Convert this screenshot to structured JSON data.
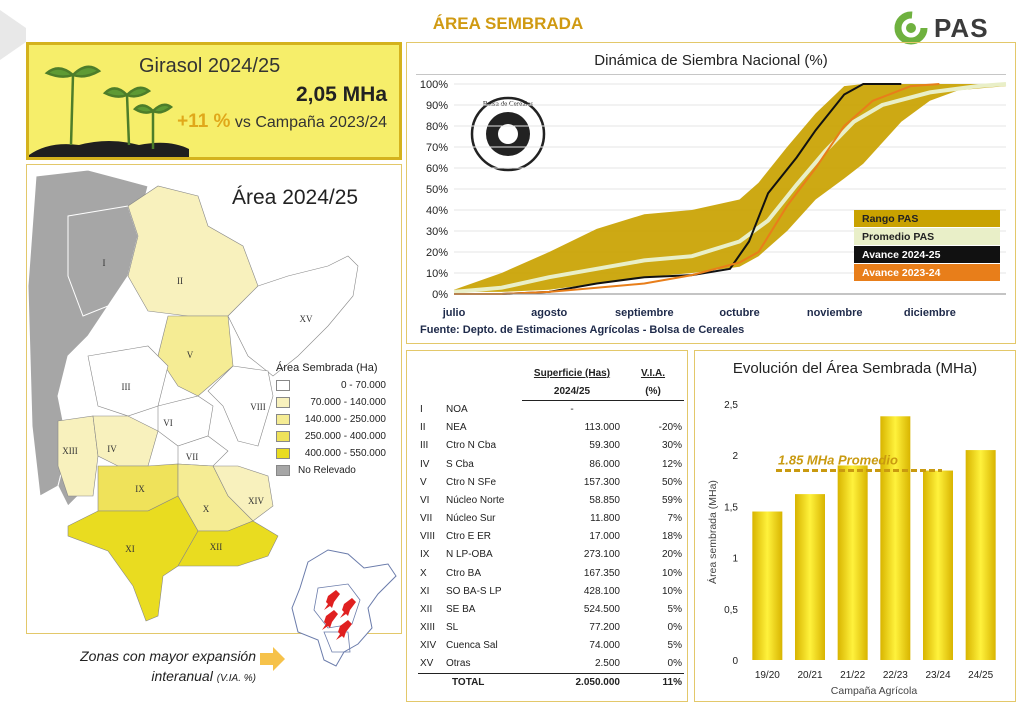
{
  "page": {
    "title": "ÁREA SEMBRADA",
    "logo": "PAS"
  },
  "crop_box": {
    "title": "Girasol 2024/25",
    "value": "2,05 MHa",
    "variation": "+11 %",
    "variation_text": "vs Campaña 2023/24"
  },
  "map": {
    "title": "Área 2024/25",
    "legend_title": "Área Sembrada (Ha)",
    "legend": [
      {
        "label": "0 - 70.000",
        "color": "#ffffff"
      },
      {
        "label": "70.000 - 140.000",
        "color": "#f8f1bd"
      },
      {
        "label": "140.000 - 250.000",
        "color": "#f5ec94"
      },
      {
        "label": "250.000 - 400.000",
        "color": "#efe25a"
      },
      {
        "label": "400.000 - 550.000",
        "color": "#e9dc20"
      },
      {
        "label": "No Relevado",
        "color": "#a6a6a6"
      }
    ],
    "zone_labels": [
      "I",
      "II",
      "III",
      "IV",
      "V",
      "VI",
      "VII",
      "VIII",
      "IX",
      "X",
      "XI",
      "XII",
      "XIII",
      "XIV",
      "XV"
    ],
    "expansion_text": "Zonas con mayor expansión",
    "expansion_text2": "interanual",
    "expansion_unit": "(V.IA. %)"
  },
  "dynamics": {
    "title": "Dinámica de Siembra Nacional (%)",
    "source": "Fuente: Depto. de Estimaciones Agrícolas - Bolsa de Cereales",
    "seal_text": "Bolsa de Cereales"
  },
  "chart_data": [
    {
      "type": "area",
      "title": "Dinámica de Siembra Nacional (%)",
      "xlabel": "",
      "ylabel": "",
      "x_ticks": [
        "julio",
        "agosto",
        "septiembre",
        "octubre",
        "noviembre",
        "diciembre"
      ],
      "y_ticks": [
        "0%",
        "10%",
        "20%",
        "30%",
        "40%",
        "50%",
        "60%",
        "70%",
        "80%",
        "90%",
        "100%"
      ],
      "ylim": [
        0,
        100
      ],
      "x_range": [
        0,
        5.8
      ],
      "legend_position": "right",
      "series": [
        {
          "name": "Rango PAS",
          "kind": "band",
          "color": "#c9a200",
          "points": [
            [
              0,
              1,
              2
            ],
            [
              0.5,
              1,
              10
            ],
            [
              1,
              2,
              20
            ],
            [
              1.5,
              5,
              31
            ],
            [
              2,
              8,
              38
            ],
            [
              2.5,
              10,
              40
            ],
            [
              3,
              13,
              45
            ],
            [
              3.2,
              18,
              53
            ],
            [
              3.5,
              30,
              70
            ],
            [
              3.8,
              45,
              86
            ],
            [
              4.1,
              55,
              99
            ],
            [
              4.3,
              62,
              100
            ],
            [
              4.7,
              82,
              100
            ],
            [
              5,
              92,
              100
            ],
            [
              5.3,
              97,
              100
            ],
            [
              5.8,
              99,
              100
            ]
          ]
        },
        {
          "name": "Promedio PAS",
          "color": "#e9efc8",
          "points": [
            [
              0,
              1
            ],
            [
              0.5,
              3
            ],
            [
              1,
              8
            ],
            [
              1.5,
              12
            ],
            [
              2,
              16
            ],
            [
              2.5,
              18
            ],
            [
              3,
              25
            ],
            [
              3.3,
              35
            ],
            [
              3.6,
              52
            ],
            [
              3.9,
              68
            ],
            [
              4.2,
              82
            ],
            [
              4.5,
              90
            ],
            [
              5,
              96
            ],
            [
              5.5,
              99
            ],
            [
              5.8,
              100
            ]
          ]
        },
        {
          "name": "Avance 2024-25",
          "color": "#111111",
          "points": [
            [
              0,
              0
            ],
            [
              0.5,
              0
            ],
            [
              1,
              1
            ],
            [
              1.5,
              5
            ],
            [
              2,
              8
            ],
            [
              2.5,
              9
            ],
            [
              2.9,
              12
            ],
            [
              3.1,
              25
            ],
            [
              3.3,
              48
            ],
            [
              3.6,
              65
            ],
            [
              3.8,
              78
            ],
            [
              4.1,
              95
            ],
            [
              4.3,
              100
            ],
            [
              4.7,
              100
            ]
          ]
        },
        {
          "name": "Avance 2023-24",
          "color": "#e87e1a",
          "points": [
            [
              0,
              0
            ],
            [
              0.5,
              0
            ],
            [
              1,
              1
            ],
            [
              1.5,
              3
            ],
            [
              2,
              5
            ],
            [
              2.5,
              9
            ],
            [
              3,
              15
            ],
            [
              3.2,
              20
            ],
            [
              3.5,
              42
            ],
            [
              3.8,
              60
            ],
            [
              4.1,
              80
            ],
            [
              4.4,
              92
            ],
            [
              4.8,
              99
            ],
            [
              5.1,
              100
            ]
          ]
        }
      ]
    },
    {
      "type": "bar",
      "title": "Evolución del Área Sembrada (MHa)",
      "xlabel": "Campaña Agrícola",
      "ylabel": "Área sembrada (MHa)",
      "categories": [
        "19/20",
        "20/21",
        "21/22",
        "22/23",
        "23/24",
        "24/25"
      ],
      "values": [
        1.45,
        1.62,
        1.9,
        2.38,
        1.85,
        2.05
      ],
      "y_ticks": [
        "0",
        "0,5",
        "1",
        "1,5",
        "2",
        "2,5"
      ],
      "ylim": [
        0,
        2.5
      ],
      "average": 1.85,
      "average_label": "1.85 MHa Promedio"
    }
  ],
  "table": {
    "headers": {
      "sup": "Superficie (Has)",
      "via": "V.I.A.",
      "sup_sub": "2024/25",
      "via_sub": "(%)"
    },
    "rows": [
      {
        "zone": "I",
        "name": "NOA",
        "area": "-",
        "via": ""
      },
      {
        "zone": "II",
        "name": "NEA",
        "area": "113.000",
        "via": "-20%"
      },
      {
        "zone": "III",
        "name": "Ctro N Cba",
        "area": "59.300",
        "via": "30%"
      },
      {
        "zone": "IV",
        "name": "S Cba",
        "area": "86.000",
        "via": "12%"
      },
      {
        "zone": "V",
        "name": "Ctro N SFe",
        "area": "157.300",
        "via": "50%"
      },
      {
        "zone": "VI",
        "name": "Núcleo Norte",
        "area": "58.850",
        "via": "59%"
      },
      {
        "zone": "VII",
        "name": "Núcleo Sur",
        "area": "11.800",
        "via": "7%"
      },
      {
        "zone": "VIII",
        "name": "Ctro E ER",
        "area": "17.000",
        "via": "18%"
      },
      {
        "zone": "IX",
        "name": "N LP-OBA",
        "area": "273.100",
        "via": "20%"
      },
      {
        "zone": "X",
        "name": "Ctro BA",
        "area": "167.350",
        "via": "10%"
      },
      {
        "zone": "XI",
        "name": "SO BA-S LP",
        "area": "428.100",
        "via": "10%"
      },
      {
        "zone": "XII",
        "name": "SE BA",
        "area": "524.500",
        "via": "5%"
      },
      {
        "zone": "XIII",
        "name": "SL",
        "area": "77.200",
        "via": "0%"
      },
      {
        "zone": "XIV",
        "name": "Cuenca Sal",
        "area": "74.000",
        "via": "5%"
      },
      {
        "zone": "XV",
        "name": "Otras",
        "area": "2.500",
        "via": "0%"
      }
    ],
    "total": {
      "label": "TOTAL",
      "area": "2.050.000",
      "via": "11%"
    }
  },
  "evolution": {
    "title": "Evolución del Área Sembrada (MHa)"
  }
}
